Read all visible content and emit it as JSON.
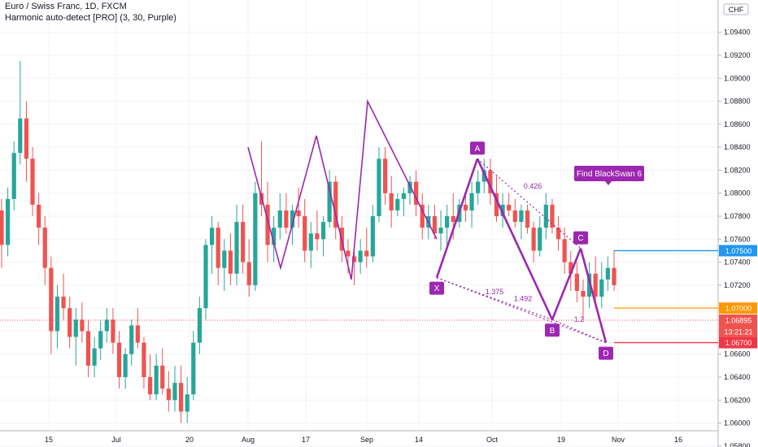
{
  "header": {
    "title": "Euro / Swiss Franc, 1D, FXCM",
    "indicator": "Harmonic auto-detect [PRO] (3, 30, Purple)"
  },
  "currency": "CHF",
  "colors": {
    "up": "#26a69a",
    "down": "#ef5350",
    "pattern": "#9c27b0",
    "blue_line": "#2196f3",
    "orange_line": "#ff9800",
    "red_line": "#f23645",
    "bg": "#ffffff",
    "grid": "#f0f3fa"
  },
  "chart_data": {
    "type": "candlestick",
    "ylim": [
      1.0565,
      1.0955
    ],
    "y_ticks": [
      "1.09400",
      "1.09200",
      "1.09000",
      "1.08800",
      "1.08600",
      "1.08400",
      "1.08200",
      "1.08000",
      "1.07800",
      "1.07600",
      "1.07400",
      "1.07200",
      "1.07000",
      "1.06800",
      "1.06600",
      "1.06400",
      "1.06200",
      "1.06000",
      "1.05800"
    ],
    "x_ticks": [
      "15",
      "Jul",
      "20",
      "Aug",
      "17",
      "Sep",
      "14",
      "Oct",
      "19",
      "Nov",
      "16"
    ],
    "candles": [
      [
        1.0785,
        1.0795,
        1.0735,
        1.0755
      ],
      [
        1.0755,
        1.0805,
        1.0745,
        1.0795
      ],
      [
        1.0795,
        1.0845,
        1.0785,
        1.0835
      ],
      [
        1.0835,
        1.0915,
        1.0825,
        1.0865
      ],
      [
        1.0865,
        1.088,
        1.081,
        1.083
      ],
      [
        1.083,
        1.084,
        1.078,
        1.079
      ],
      [
        1.079,
        1.08,
        1.0755,
        1.077
      ],
      [
        1.077,
        1.078,
        1.072,
        1.0735
      ],
      [
        1.0735,
        1.0745,
        1.066,
        1.068
      ],
      [
        1.068,
        1.072,
        1.0665,
        1.071
      ],
      [
        1.071,
        1.073,
        1.069,
        1.07
      ],
      [
        1.07,
        1.071,
        1.0665,
        1.0675
      ],
      [
        1.0675,
        1.07,
        1.065,
        1.069
      ],
      [
        1.069,
        1.0705,
        1.067,
        1.068
      ],
      [
        1.068,
        1.069,
        1.064,
        1.065
      ],
      [
        1.065,
        1.0675,
        1.064,
        1.0665
      ],
      [
        1.0665,
        1.069,
        1.0655,
        1.068
      ],
      [
        1.068,
        1.07,
        1.067,
        1.069
      ],
      [
        1.069,
        1.07,
        1.066,
        1.067
      ],
      [
        1.067,
        1.068,
        1.063,
        1.064
      ],
      [
        1.064,
        1.0665,
        1.063,
        1.066
      ],
      [
        1.066,
        1.069,
        1.065,
        1.0685
      ],
      [
        1.0685,
        1.07,
        1.0665,
        1.067
      ],
      [
        1.067,
        1.0675,
        1.063,
        1.064
      ],
      [
        1.064,
        1.066,
        1.062,
        1.0625
      ],
      [
        1.0625,
        1.066,
        1.062,
        1.065
      ],
      [
        1.065,
        1.0665,
        1.0625,
        1.063
      ],
      [
        1.063,
        1.0645,
        1.061,
        1.062
      ],
      [
        1.062,
        1.065,
        1.061,
        1.0635
      ],
      [
        1.0635,
        1.065,
        1.06,
        1.061
      ],
      [
        1.061,
        1.064,
        1.06,
        1.0625
      ],
      [
        1.0625,
        1.068,
        1.062,
        1.067
      ],
      [
        1.067,
        1.071,
        1.066,
        1.07
      ],
      [
        1.07,
        1.076,
        1.069,
        1.0755
      ],
      [
        1.0755,
        1.078,
        1.073,
        1.077
      ],
      [
        1.077,
        1.0775,
        1.072,
        1.0735
      ],
      [
        1.0735,
        1.076,
        1.0715,
        1.075
      ],
      [
        1.075,
        1.0765,
        1.072,
        1.073
      ],
      [
        1.073,
        1.079,
        1.072,
        1.0775
      ],
      [
        1.0775,
        1.079,
        1.073,
        1.074
      ],
      [
        1.074,
        1.076,
        1.071,
        1.072
      ],
      [
        1.072,
        1.081,
        1.0715,
        1.08
      ],
      [
        1.08,
        1.0845,
        1.078,
        1.079
      ],
      [
        1.079,
        1.081,
        1.074,
        1.0755
      ],
      [
        1.0755,
        1.078,
        1.074,
        1.077
      ],
      [
        1.077,
        1.08,
        1.076,
        1.0785
      ],
      [
        1.0785,
        1.08,
        1.0765,
        1.077
      ],
      [
        1.077,
        1.079,
        1.0755,
        1.0785
      ],
      [
        1.0785,
        1.0805,
        1.077,
        1.078
      ],
      [
        1.078,
        1.0795,
        1.074,
        1.075
      ],
      [
        1.075,
        1.0775,
        1.0735,
        1.0765
      ],
      [
        1.0765,
        1.0785,
        1.075,
        1.076
      ],
      [
        1.076,
        1.078,
        1.0745,
        1.0775
      ],
      [
        1.0775,
        1.082,
        1.077,
        1.081
      ],
      [
        1.081,
        1.0815,
        1.076,
        1.077
      ],
      [
        1.077,
        1.078,
        1.074,
        1.075
      ],
      [
        1.075,
        1.076,
        1.073,
        1.0745
      ],
      [
        1.0745,
        1.0755,
        1.072,
        1.074
      ],
      [
        1.074,
        1.076,
        1.073,
        1.075
      ],
      [
        1.075,
        1.077,
        1.0735,
        1.0745
      ],
      [
        1.0745,
        1.079,
        1.074,
        1.078
      ],
      [
        1.078,
        1.084,
        1.0775,
        1.083
      ],
      [
        1.083,
        1.084,
        1.079,
        1.08
      ],
      [
        1.08,
        1.0815,
        1.077,
        1.0785
      ],
      [
        1.0785,
        1.08,
        1.078,
        1.0795
      ],
      [
        1.0795,
        1.0805,
        1.078,
        1.08
      ],
      [
        1.08,
        1.0815,
        1.079,
        1.081
      ],
      [
        1.081,
        1.082,
        1.078,
        1.079
      ],
      [
        1.079,
        1.08,
        1.076,
        1.077
      ],
      [
        1.077,
        1.079,
        1.076,
        1.078
      ],
      [
        1.078,
        1.079,
        1.076,
        1.0765
      ],
      [
        1.0765,
        1.0785,
        1.075,
        1.077
      ],
      [
        1.077,
        1.079,
        1.0755,
        1.078
      ],
      [
        1.078,
        1.08,
        1.076,
        1.0775
      ],
      [
        1.0775,
        1.0795,
        1.077,
        1.079
      ],
      [
        1.079,
        1.08,
        1.0775,
        1.0785
      ],
      [
        1.0785,
        1.081,
        1.077,
        1.08
      ],
      [
        1.08,
        1.082,
        1.079,
        1.081
      ],
      [
        1.081,
        1.083,
        1.08,
        1.082
      ],
      [
        1.082,
        1.083,
        1.079,
        1.08
      ],
      [
        1.08,
        1.0815,
        1.0775,
        1.078
      ],
      [
        1.078,
        1.08,
        1.077,
        1.079
      ],
      [
        1.079,
        1.08,
        1.078,
        1.0785
      ],
      [
        1.0785,
        1.0795,
        1.077,
        1.0775
      ],
      [
        1.0775,
        1.079,
        1.076,
        1.0785
      ],
      [
        1.0785,
        1.079,
        1.0765,
        1.077
      ],
      [
        1.077,
        1.0775,
        1.074,
        1.075
      ],
      [
        1.075,
        1.078,
        1.0745,
        1.077
      ],
      [
        1.077,
        1.08,
        1.076,
        1.079
      ],
      [
        1.079,
        1.0795,
        1.0765,
        1.077
      ],
      [
        1.077,
        1.078,
        1.075,
        1.076
      ],
      [
        1.076,
        1.077,
        1.073,
        1.074
      ],
      [
        1.074,
        1.075,
        1.0715,
        1.073
      ],
      [
        1.073,
        1.074,
        1.0705,
        1.0715
      ],
      [
        1.0715,
        1.0725,
        1.069,
        1.071
      ],
      [
        1.071,
        1.074,
        1.07,
        1.073
      ],
      [
        1.073,
        1.0745,
        1.07,
        1.071
      ],
      [
        1.071,
        1.074,
        1.07,
        1.0725
      ],
      [
        1.0725,
        1.0745,
        1.0715,
        1.0735
      ],
      [
        1.0735,
        1.075,
        1.0715,
        1.072
      ]
    ],
    "pattern_zigzag": [
      [
        1.084,
        1.0735
      ],
      [
        1.085,
        1.076
      ],
      [
        1.0725,
        1.088
      ],
      [
        1.076,
        1.083
      ],
      [
        1.0727,
        1.083
      ]
    ],
    "harmonic_points": [
      {
        "label": "X",
        "value": 1.07265
      },
      {
        "label": "A",
        "value": 1.083
      },
      {
        "label": "B",
        "value": 1.069
      },
      {
        "label": "C",
        "value": 1.0752
      },
      {
        "label": "D",
        "value": 1.067
      }
    ],
    "ratios": [
      "0.426",
      "1.375",
      "1.492",
      "1.2"
    ],
    "annotation": "Find BlackSwan 6",
    "levels": [
      {
        "value": "1.07500",
        "color": "#2196f3"
      },
      {
        "value": "1.07000",
        "color": "#ff9800"
      },
      {
        "value": "1.06700",
        "color": "#f23645"
      }
    ],
    "last_price": "1.06895",
    "countdown": "13:21:21"
  }
}
